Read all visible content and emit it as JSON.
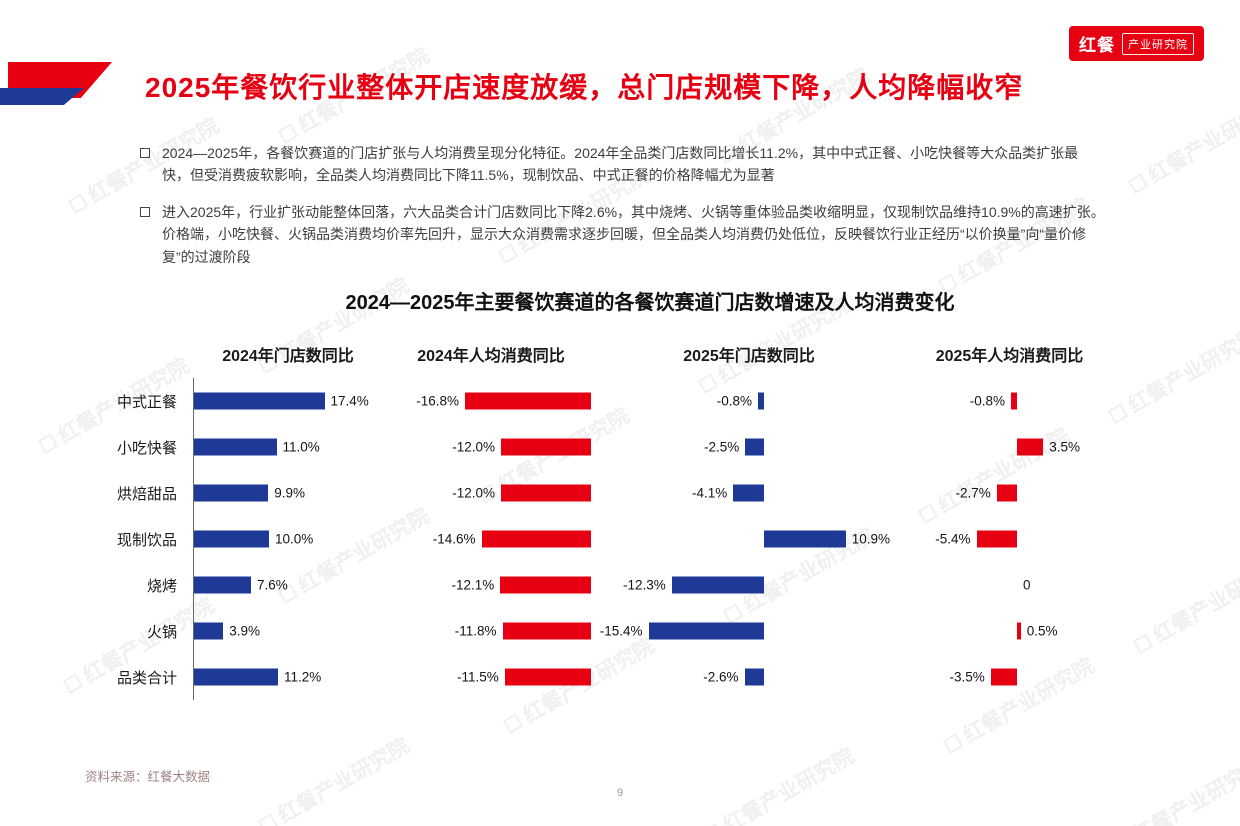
{
  "logo": {
    "brand": "红餐",
    "suffix": "产业研究院"
  },
  "watermark": {
    "text": "红餐产业研究院"
  },
  "header": {
    "title": "2025年餐饮行业整体开店速度放缓，总门店规模下降，人均降幅收窄"
  },
  "bullets": [
    "2024—2025年，各餐饮赛道的门店扩张与人均消费呈现分化特征。2024年全品类门店数同比增长11.2%，其中中式正餐、小吃快餐等大众品类扩张最快，但受消费疲软影响，全品类人均消费同比下降11.5%，现制饮品、中式正餐的价格降幅尤为显著",
    "进入2025年，行业扩张动能整体回落，六大品类合计门店数同比下降2.6%，其中烧烤、火锅等重体验品类收缩明显，仅现制饮品维持10.9%的高速扩张。价格端，小吃快餐、火锅品类消费均价率先回升，显示大众消费需求逐步回暖，但全品类人均消费仍处低位，反映餐饮行业正经历“以价换量”向“量价修复”的过渡阶段"
  ],
  "chart_data": {
    "type": "bar",
    "orientation": "horizontal",
    "title": "2024—2025年主要餐饮赛道的各餐饮赛道门店数增速及人均消费变化",
    "value_unit": "%",
    "categories": [
      "中式正餐",
      "小吃快餐",
      "烘焙甜品",
      "现制饮品",
      "烧烤",
      "火锅",
      "品类合计"
    ],
    "series": [
      {
        "name": "2024年门店数同比",
        "color": "#1E3A96",
        "values": [
          17.4,
          11.0,
          9.9,
          10.0,
          7.6,
          3.9,
          11.2
        ],
        "labels": [
          "17.4%",
          "11.0%",
          "9.9%",
          "10.0%",
          "7.6%",
          "3.9%",
          "11.2%"
        ]
      },
      {
        "name": "2024年人均消费同比",
        "color": "#E60012",
        "values": [
          -16.8,
          -12.0,
          -12.0,
          -14.6,
          -12.1,
          -11.8,
          -11.5
        ],
        "labels": [
          "-16.8%",
          "-12.0%",
          "-12.0%",
          "-14.6%",
          "-12.1%",
          "-11.8%",
          "-11.5%"
        ]
      },
      {
        "name": "2025年门店数同比",
        "color": "#1E3A96",
        "values": [
          -0.8,
          -2.5,
          -4.1,
          10.9,
          -12.3,
          -15.4,
          -2.6
        ],
        "labels": [
          "-0.8%",
          "-2.5%",
          "-4.1%",
          "10.9%",
          "-12.3%",
          "-15.4%",
          "-2.6%"
        ]
      },
      {
        "name": "2025年人均消费同比",
        "color": "#E60012",
        "values": [
          -0.8,
          3.5,
          -2.7,
          -5.4,
          0,
          0.5,
          -3.5
        ],
        "labels": [
          "-0.8%",
          "3.5%",
          "-2.7%",
          "-5.4%",
          "0",
          "0.5%",
          "-3.5%"
        ]
      }
    ]
  },
  "footer": {
    "source": "资料来源：红餐大数据",
    "page": "9"
  }
}
